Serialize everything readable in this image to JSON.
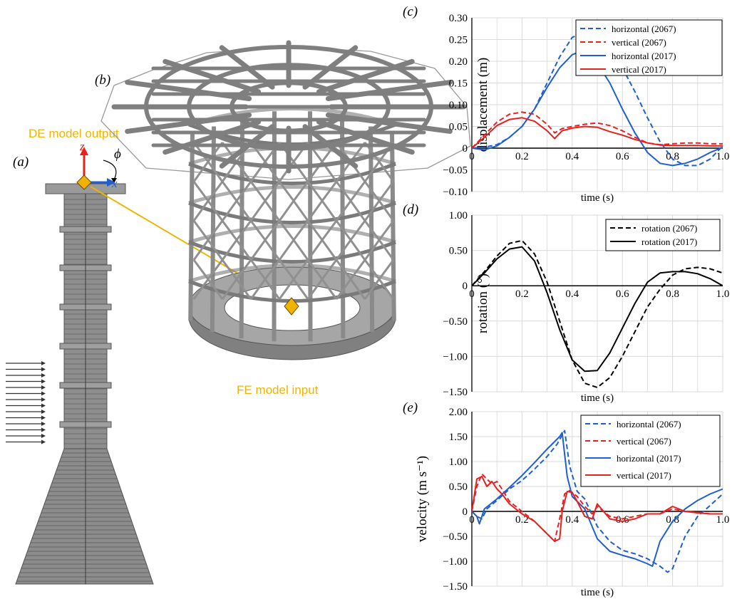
{
  "figure": {
    "panel_a": "(a)",
    "panel_b": "(b)",
    "panel_c": "(c)",
    "panel_d": "(d)",
    "panel_e": "(e)",
    "de_output_label": "DE model output",
    "fe_input_label": "FE model input",
    "axis_z": "z",
    "axis_x": "x",
    "angle_phi": "ϕ"
  },
  "colors": {
    "blue": "#1f5fd0",
    "red": "#e8201e",
    "black": "#000000",
    "yellow": "#f0b400",
    "grid": "#d9d9d9"
  },
  "chart_data": [
    {
      "id": "c",
      "type": "line",
      "xlabel": "time (s)",
      "ylabel": "displacement (m)",
      "xlim": [
        0,
        1.0
      ],
      "ylim": [
        -0.1,
        0.3
      ],
      "xticks": [
        "0",
        "0.2",
        "0.4",
        "0.6",
        "0.8",
        "1.0"
      ],
      "yticks": [
        "−0.10",
        "−0.05",
        "0",
        "0.05",
        "0.10",
        "0.15",
        "0.20",
        "0.25",
        "0.30"
      ],
      "grid": true,
      "legend_position": "top-right",
      "series": [
        {
          "name": "horizontal (2067)",
          "color": "#1f5fd0",
          "dash": true,
          "x": [
            0,
            0.05,
            0.1,
            0.15,
            0.2,
            0.25,
            0.3,
            0.35,
            0.4,
            0.45,
            0.5,
            0.55,
            0.6,
            0.65,
            0.7,
            0.75,
            0.8,
            0.85,
            0.9,
            0.95,
            1.0
          ],
          "y": [
            0,
            0.002,
            0.008,
            0.025,
            0.05,
            0.09,
            0.15,
            0.21,
            0.255,
            0.268,
            0.262,
            0.23,
            0.185,
            0.13,
            0.07,
            0.015,
            -0.025,
            -0.04,
            -0.04,
            -0.025,
            0.005
          ]
        },
        {
          "name": "vertical (2067)",
          "color": "#e8201e",
          "dash": true,
          "x": [
            0,
            0.05,
            0.1,
            0.15,
            0.2,
            0.25,
            0.3,
            0.33,
            0.36,
            0.4,
            0.45,
            0.5,
            0.55,
            0.6,
            0.65,
            0.7,
            0.75,
            0.8,
            0.85,
            0.9,
            0.95,
            1.0
          ],
          "y": [
            0,
            0.03,
            0.06,
            0.078,
            0.083,
            0.078,
            0.055,
            0.035,
            0.045,
            0.05,
            0.055,
            0.058,
            0.052,
            0.04,
            0.025,
            0.012,
            0.008,
            0.01,
            0.012,
            0.012,
            0.01,
            0.01
          ]
        },
        {
          "name": "horizontal (2017)",
          "color": "#1f5fd0",
          "dash": false,
          "x": [
            0,
            0.05,
            0.1,
            0.15,
            0.2,
            0.25,
            0.3,
            0.35,
            0.4,
            0.43,
            0.47,
            0.5,
            0.55,
            0.6,
            0.65,
            0.7,
            0.75,
            0.8,
            0.85,
            0.9,
            0.95,
            1.0
          ],
          "y": [
            0,
            -0.004,
            0.005,
            0.025,
            0.05,
            0.09,
            0.14,
            0.185,
            0.215,
            0.222,
            0.215,
            0.195,
            0.15,
            0.09,
            0.035,
            -0.01,
            -0.035,
            -0.04,
            -0.035,
            -0.025,
            -0.01,
            0.002
          ]
        },
        {
          "name": "vertical (2017)",
          "color": "#e8201e",
          "dash": false,
          "x": [
            0,
            0.05,
            0.1,
            0.15,
            0.2,
            0.25,
            0.3,
            0.33,
            0.36,
            0.4,
            0.45,
            0.5,
            0.55,
            0.6,
            0.65,
            0.7,
            0.75,
            0.8,
            0.85,
            0.9,
            0.95,
            1.0
          ],
          "y": [
            0,
            0.025,
            0.052,
            0.066,
            0.07,
            0.062,
            0.04,
            0.022,
            0.04,
            0.046,
            0.05,
            0.048,
            0.038,
            0.03,
            0.02,
            0.012,
            0.007,
            0.006,
            0.006,
            0.006,
            0.005,
            0.005
          ]
        }
      ]
    },
    {
      "id": "d",
      "type": "line",
      "xlabel": "time (s)",
      "ylabel": "rotation (°)",
      "xlim": [
        0,
        1.0
      ],
      "ylim": [
        -1.5,
        1.0
      ],
      "xticks": [
        "0",
        "0.2",
        "0.4",
        "0.6",
        "0.8",
        "1.0"
      ],
      "yticks": [
        "−1.50",
        "−1.00",
        "−0.50",
        "0",
        "0.50",
        "1.00"
      ],
      "grid": true,
      "legend_position": "top-right",
      "series": [
        {
          "name": "rotation (2067)",
          "color": "#000000",
          "dash": true,
          "x": [
            0,
            0.05,
            0.1,
            0.15,
            0.2,
            0.25,
            0.3,
            0.35,
            0.4,
            0.45,
            0.5,
            0.55,
            0.6,
            0.65,
            0.7,
            0.75,
            0.8,
            0.85,
            0.9,
            0.95,
            1.0
          ],
          "y": [
            0,
            0.2,
            0.42,
            0.6,
            0.64,
            0.45,
            0.05,
            -0.5,
            -1.05,
            -1.38,
            -1.44,
            -1.3,
            -1.0,
            -0.65,
            -0.3,
            -0.05,
            0.15,
            0.24,
            0.26,
            0.24,
            0.18
          ]
        },
        {
          "name": "rotation (2017)",
          "color": "#000000",
          "dash": false,
          "x": [
            0,
            0.05,
            0.1,
            0.15,
            0.2,
            0.25,
            0.3,
            0.35,
            0.4,
            0.45,
            0.5,
            0.55,
            0.6,
            0.65,
            0.7,
            0.75,
            0.8,
            0.85,
            0.9,
            0.95,
            1.0
          ],
          "y": [
            0,
            0.18,
            0.38,
            0.52,
            0.55,
            0.35,
            -0.1,
            -0.62,
            -1.05,
            -1.21,
            -1.2,
            -0.95,
            -0.6,
            -0.25,
            0.05,
            0.18,
            0.2,
            0.2,
            0.17,
            0.1,
            0.0
          ]
        }
      ]
    },
    {
      "id": "e",
      "type": "line",
      "xlabel": "time (s)",
      "ylabel": "velocity (m s⁻¹)",
      "xlim": [
        0,
        1.0
      ],
      "ylim": [
        -1.5,
        2.0
      ],
      "xticks": [
        "0",
        "0.2",
        "0.4",
        "0.6",
        "0.8",
        "1.0"
      ],
      "yticks": [
        "−1.50",
        "−1.00",
        "−0.50",
        "0",
        "0.50",
        "1.00",
        "1.50",
        "2.00"
      ],
      "grid": true,
      "legend_position": "top-right",
      "series": [
        {
          "name": "horizontal (2067)",
          "color": "#1f5fd0",
          "dash": true,
          "x": [
            0,
            0.02,
            0.04,
            0.06,
            0.1,
            0.15,
            0.2,
            0.25,
            0.3,
            0.34,
            0.37,
            0.39,
            0.42,
            0.45,
            0.5,
            0.55,
            0.6,
            0.65,
            0.7,
            0.75,
            0.78,
            0.8,
            0.85,
            0.9,
            0.95,
            1.0
          ],
          "y": [
            0,
            -0.1,
            -0.15,
            0.05,
            0.22,
            0.45,
            0.62,
            0.85,
            1.1,
            1.35,
            1.62,
            0.9,
            0.4,
            0.25,
            -0.3,
            -0.6,
            -0.78,
            -0.85,
            -0.95,
            -1.1,
            -1.22,
            -1.15,
            -0.5,
            -0.1,
            0.12,
            0.35
          ]
        },
        {
          "name": "vertical (2067)",
          "color": "#e8201e",
          "dash": true,
          "x": [
            0,
            0.02,
            0.04,
            0.06,
            0.08,
            0.1,
            0.12,
            0.15,
            0.2,
            0.25,
            0.3,
            0.33,
            0.35,
            0.37,
            0.39,
            0.42,
            0.45,
            0.48,
            0.5,
            0.55,
            0.6,
            0.65,
            0.7,
            0.75,
            0.8,
            0.85,
            0.9,
            0.95,
            1.0
          ],
          "y": [
            0,
            0.5,
            0.75,
            0.65,
            0.55,
            0.6,
            0.45,
            0.2,
            0.0,
            -0.2,
            -0.45,
            -0.6,
            -0.15,
            0.35,
            0.42,
            0.3,
            0.1,
            -0.05,
            0.1,
            -0.1,
            -0.15,
            -0.1,
            -0.05,
            -0.05,
            0.05,
            0.0,
            -0.02,
            -0.05,
            -0.05
          ]
        },
        {
          "name": "horizontal (2017)",
          "color": "#1f5fd0",
          "dash": false,
          "x": [
            0,
            0.02,
            0.03,
            0.05,
            0.1,
            0.15,
            0.2,
            0.25,
            0.3,
            0.35,
            0.36,
            0.38,
            0.4,
            0.45,
            0.5,
            0.55,
            0.6,
            0.65,
            0.7,
            0.72,
            0.75,
            0.8,
            0.85,
            0.9,
            0.95,
            1.0
          ],
          "y": [
            0,
            -0.1,
            -0.25,
            0.05,
            0.25,
            0.48,
            0.72,
            0.98,
            1.25,
            1.5,
            1.58,
            0.7,
            0.3,
            0.05,
            -0.55,
            -0.8,
            -0.88,
            -0.95,
            -1.05,
            -1.1,
            -0.6,
            -0.2,
            0.05,
            0.22,
            0.35,
            0.45
          ]
        },
        {
          "name": "vertical (2017)",
          "color": "#e8201e",
          "dash": false,
          "x": [
            0,
            0.02,
            0.04,
            0.06,
            0.08,
            0.1,
            0.12,
            0.15,
            0.2,
            0.25,
            0.3,
            0.33,
            0.35,
            0.36,
            0.38,
            0.4,
            0.42,
            0.45,
            0.48,
            0.5,
            0.55,
            0.6,
            0.65,
            0.7,
            0.75,
            0.8,
            0.85,
            0.9,
            0.95,
            1.0
          ],
          "y": [
            0,
            0.65,
            0.7,
            0.5,
            0.6,
            0.45,
            0.35,
            0.15,
            -0.05,
            -0.2,
            -0.45,
            -0.6,
            -0.55,
            0.0,
            0.4,
            0.38,
            0.2,
            -0.1,
            -0.15,
            0.15,
            -0.15,
            -0.2,
            -0.15,
            -0.05,
            -0.05,
            0.1,
            0.0,
            -0.03,
            -0.05,
            -0.05
          ]
        }
      ]
    }
  ]
}
